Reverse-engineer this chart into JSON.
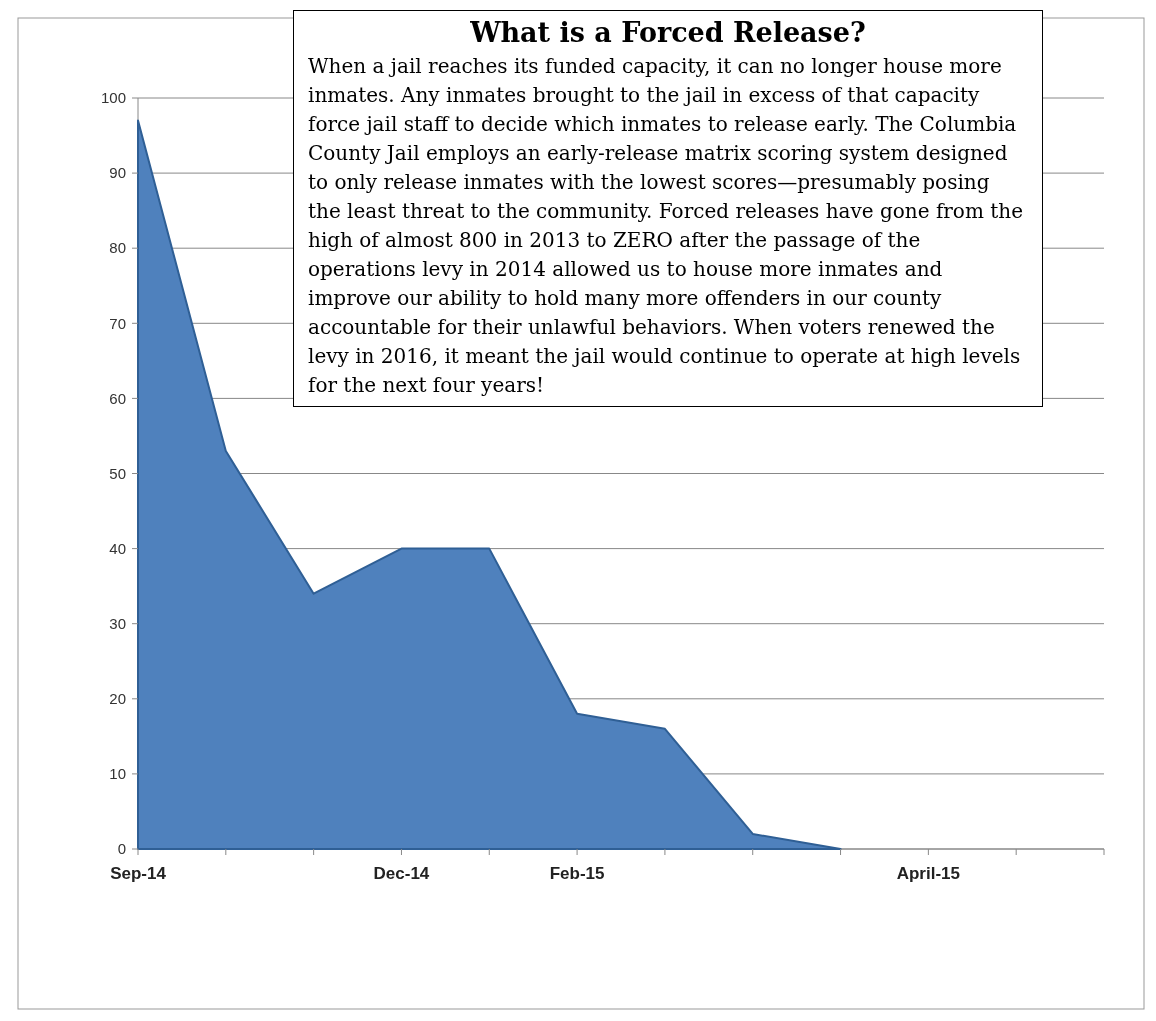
{
  "chart_data": {
    "type": "area",
    "title": "What is a Forced Release?",
    "annotations": [
      "When a jail reaches its funded capacity, it can no longer house more inmates. Any inmates brought to the jail in excess of that capacity force jail staff to decide which inmates to release early.  The Columbia County Jail employs an early-release matrix scoring system designed to only release inmates with the lowest scores—presumably posing the least threat to the community. Forced releases have gone from the high of almost 800 in 2013 to ZERO after the passage of the operations levy in 2014 allowed us to house more inmates and improve our ability to hold many more offenders in our county accountable for their unlawful behaviors.  When voters renewed the levy in 2016, it meant the jail would continue to operate at high levels for the next four years!"
    ],
    "categories": [
      "Sep-14",
      null,
      null,
      "Dec-14",
      null,
      "Feb-15",
      null,
      null,
      null,
      "April-15",
      null,
      null
    ],
    "series": [
      {
        "color": "#4f81bd",
        "values": [
          97,
          53,
          34,
          40,
          40,
          18,
          16,
          2,
          0,
          null,
          null,
          null
        ]
      }
    ],
    "ylim": [
      0,
      100
    ],
    "yticks": [
      0,
      10,
      20,
      30,
      40,
      50,
      60,
      70,
      80,
      90,
      100
    ],
    "grid": "y"
  }
}
